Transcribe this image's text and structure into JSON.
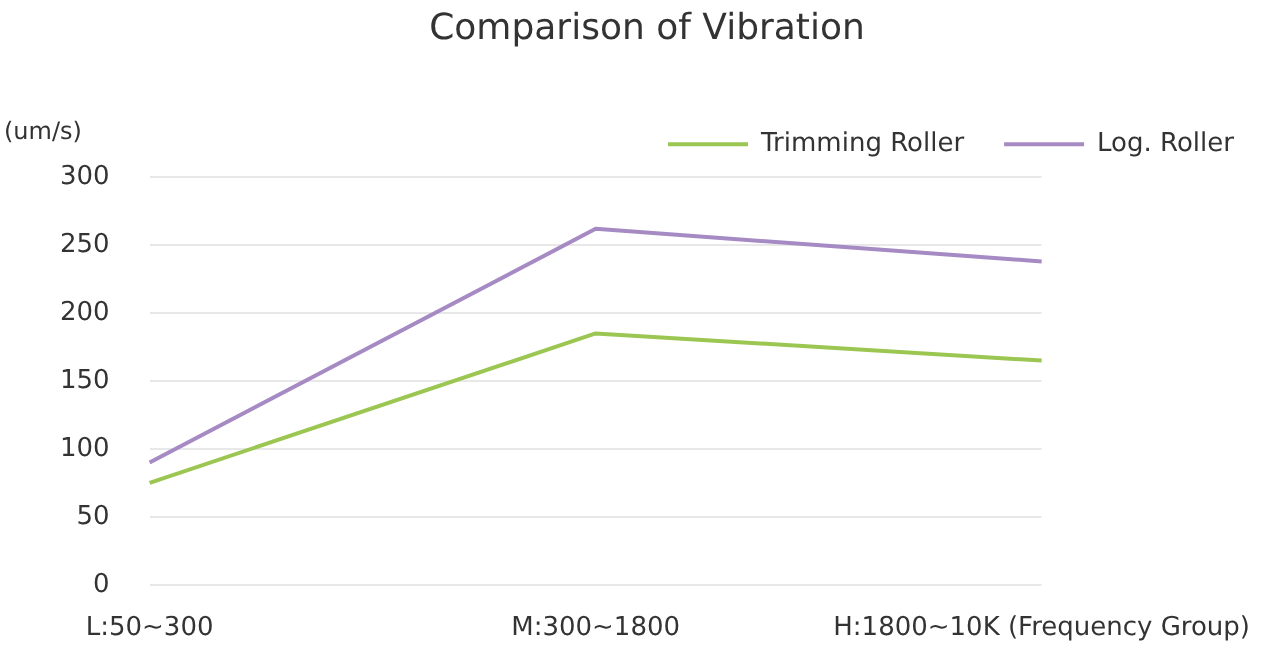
{
  "chart_data": {
    "type": "line",
    "title": "Comparison of Vibration",
    "ylabel": "(um/s)",
    "categories": [
      "L:50~300",
      "M:300~1800",
      "H:1800~10K (Frequency Group)"
    ],
    "series": [
      {
        "name": "Trimming Roller",
        "color": "#9bc651",
        "values": [
          75,
          185,
          165
        ]
      },
      {
        "name": "Log. Roller",
        "color": "#a58ac4",
        "values": [
          90,
          262,
          238
        ]
      }
    ],
    "ylim": [
      0,
      300
    ],
    "yticks": [
      0,
      50,
      100,
      150,
      200,
      250,
      300
    ],
    "grid": "y",
    "legend": "top right",
    "marker": "none"
  }
}
